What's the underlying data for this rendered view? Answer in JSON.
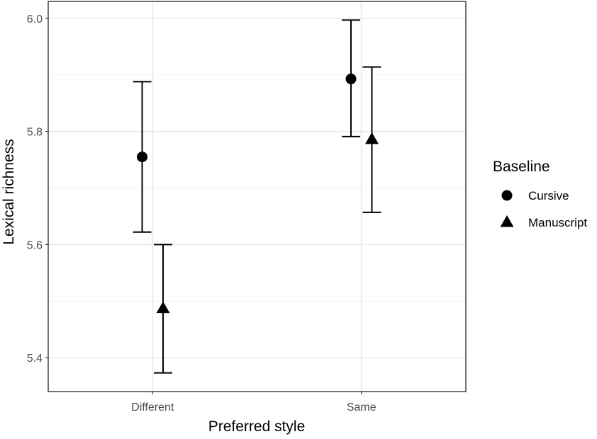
{
  "chart_data": {
    "type": "scatter",
    "subtype": "point-errorbar",
    "title": "",
    "xlabel": "Preferred style",
    "ylabel": "Lexical richness",
    "categories": [
      "Different",
      "Same"
    ],
    "ylim": [
      5.34,
      6.03
    ],
    "yticks": [
      5.4,
      5.6,
      5.8,
      6.0
    ],
    "ytick_labels": [
      "5.4",
      "5.6",
      "5.8",
      "6.0"
    ],
    "grid": true,
    "legend": {
      "title": "Baseline",
      "position": "right"
    },
    "series": [
      {
        "name": "Cursive",
        "marker": "circle",
        "color": "#000000",
        "points": [
          {
            "category": "Different",
            "y": 5.755,
            "ymin": 5.622,
            "ymax": 5.888
          },
          {
            "category": "Same",
            "y": 5.893,
            "ymin": 5.791,
            "ymax": 5.997
          }
        ]
      },
      {
        "name": "Manuscript",
        "marker": "triangle",
        "color": "#000000",
        "points": [
          {
            "category": "Different",
            "y": 5.487,
            "ymin": 5.373,
            "ymax": 5.6
          },
          {
            "category": "Same",
            "y": 5.786,
            "ymin": 5.657,
            "ymax": 5.914
          }
        ]
      }
    ],
    "colors": {
      "panel_border": "#333333",
      "grid_major": "#ebebeb",
      "grid_minor": "#f5f5f5",
      "tick_text": "#4d4d4d"
    }
  }
}
